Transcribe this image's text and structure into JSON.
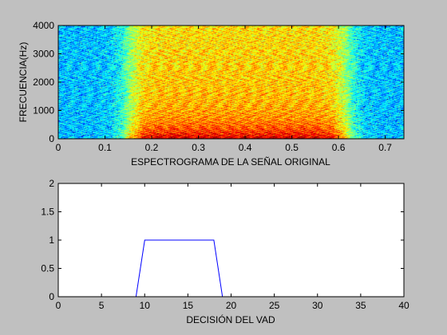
{
  "figure_background": "#c0c0c0",
  "chart_data": [
    {
      "type": "heatmap",
      "title": "",
      "xlabel": "ESPECTROGRAMA DE LA SEÑAL ORIGINAL",
      "ylabel": "FRECUENCIA(Hz)",
      "xlim": [
        0,
        0.74
      ],
      "ylim": [
        0,
        4000
      ],
      "x_ticks": [
        0,
        0.1,
        0.2,
        0.3,
        0.4,
        0.5,
        0.6,
        0.7
      ],
      "x_tick_labels": [
        "0",
        "0.1",
        "0.2",
        "0.3",
        "0.4",
        "0.5",
        "0.6",
        "0.7"
      ],
      "y_ticks": [
        0,
        1000,
        2000,
        3000,
        4000
      ],
      "y_tick_labels": [
        "0",
        "1000",
        "2000",
        "3000",
        "4000"
      ],
      "colormap": "jet",
      "speech_region_seconds": [
        0.15,
        0.62
      ],
      "grid": false
    },
    {
      "type": "line",
      "title": "",
      "xlabel": "DECISIÓN DEL VAD",
      "ylabel": "",
      "xlim": [
        0,
        40
      ],
      "ylim": [
        0,
        2
      ],
      "x_ticks": [
        0,
        5,
        10,
        15,
        20,
        25,
        30,
        35,
        40
      ],
      "x_tick_labels": [
        "0",
        "5",
        "10",
        "15",
        "20",
        "25",
        "30",
        "35",
        "40"
      ],
      "y_ticks": [
        0,
        0.5,
        1,
        1.5,
        2
      ],
      "y_tick_labels": [
        "0",
        "0.5",
        "1",
        "1.5",
        "2"
      ],
      "grid": false,
      "series": [
        {
          "color": "#0000ff",
          "x": [
            0,
            9,
            10,
            18,
            19,
            40
          ],
          "y": [
            0,
            0,
            1,
            1,
            0,
            0
          ]
        }
      ]
    }
  ]
}
